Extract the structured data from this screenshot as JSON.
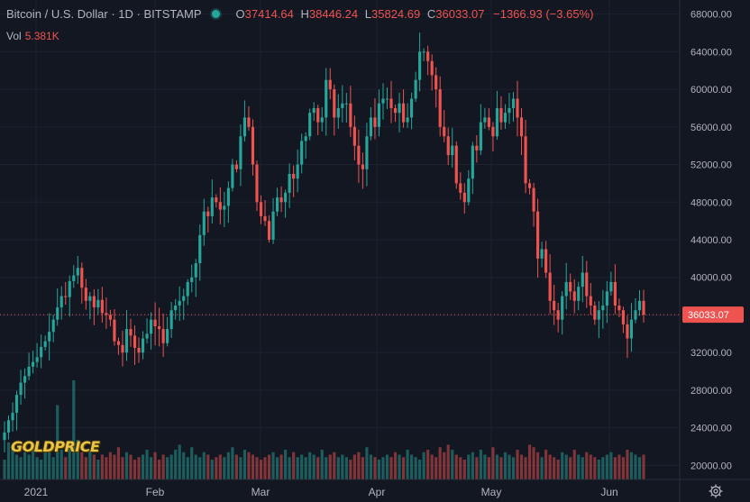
{
  "header": {
    "symbol": "Bitcoin / U.S. Dollar",
    "interval": "1D",
    "exchange": "BITSTAMP",
    "open_label": "O",
    "open": "37414.64",
    "high_label": "H",
    "high": "38446.24",
    "low_label": "L",
    "low": "35824.69",
    "close_label": "C",
    "close": "36033.07",
    "change": "−1366.93 (−3.65%)",
    "vol_label": "Vol",
    "vol": "5.381K"
  },
  "last_price": "36033.07",
  "watermark": "GOLDPRICE",
  "colors": {
    "up": "#26a69a",
    "down": "#ef5350",
    "bg": "#131722",
    "grid": "#1e2230"
  },
  "chart_data": {
    "type": "candlestick",
    "y_axis_ticks": [
      "68000.00",
      "64000.00",
      "60000.00",
      "56000.00",
      "52000.00",
      "48000.00",
      "44000.00",
      "40000.00",
      "36000.00",
      "32000.00",
      "28000.00",
      "24000.00",
      "20000.00"
    ],
    "ylim": [
      18500,
      69500
    ],
    "x_axis_ticks": [
      "2021",
      "Feb",
      "Mar",
      "Apr",
      "May",
      "Jun"
    ],
    "closes": [
      23500,
      24800,
      25600,
      27500,
      28800,
      29500,
      30500,
      31000,
      31500,
      32600,
      33200,
      34200,
      35500,
      36800,
      38000,
      37900,
      39600,
      40200,
      41000,
      38900,
      37500,
      38000,
      36800,
      37600,
      36200,
      36000,
      35500,
      33200,
      32800,
      32000,
      34500,
      33800,
      32500,
      32000,
      33500,
      34000,
      35500,
      34800,
      34500,
      33000,
      34500,
      36500,
      37000,
      37500,
      38000,
      39500,
      40000,
      41500,
      44500,
      47000,
      46500,
      48500,
      48000,
      47200,
      47600,
      49500,
      52000,
      51500,
      55000,
      57000,
      56000,
      52000,
      48000,
      46500,
      46000,
      44000,
      47000,
      48500,
      48000,
      49000,
      51000,
      50500,
      52000,
      54500,
      55000,
      57500,
      58000,
      56500,
      57000,
      61000,
      60000,
      57000,
      58000,
      58500,
      58500,
      56000,
      54000,
      52000,
      51500,
      55000,
      57000,
      56000,
      58500,
      59000,
      59000,
      58000,
      57500,
      58500,
      56500,
      57000,
      59000,
      61000,
      64000,
      64000,
      63000,
      61500,
      60000,
      56000,
      55000,
      53000,
      54000,
      50000,
      49000,
      48000,
      50500,
      54000,
      53500,
      56500,
      57000,
      56000,
      55000,
      58000,
      56500,
      57500,
      58000,
      59000,
      57000,
      55000,
      50000,
      49500,
      47000,
      42000,
      43000,
      40500,
      37500,
      36500,
      35500,
      38000,
      39500,
      38500,
      37500,
      39000,
      40500,
      38000,
      37000,
      35500,
      36500,
      37000,
      38500,
      39500,
      37000,
      36500,
      35000,
      33500,
      35500,
      36500,
      37500,
      36033
    ],
    "volumes": [
      8,
      15,
      12,
      10,
      9,
      11,
      10,
      14,
      9,
      8,
      13,
      11,
      9,
      30,
      12,
      9,
      14,
      40,
      16,
      11,
      9,
      12,
      10,
      8,
      10,
      9,
      11,
      10,
      13,
      9,
      11,
      10,
      8,
      9,
      10,
      12,
      9,
      11,
      8,
      10,
      9,
      10,
      12,
      14,
      11,
      9,
      13,
      10,
      9,
      11,
      10,
      8,
      9,
      10,
      9,
      11,
      13,
      10,
      9,
      12,
      11,
      10,
      9,
      8,
      9,
      10,
      11,
      9,
      10,
      12,
      9,
      11,
      9,
      10,
      9,
      11,
      10,
      9,
      12,
      9,
      10,
      11,
      9,
      10,
      9,
      8,
      10,
      11,
      9,
      13,
      10,
      9,
      8,
      9,
      10,
      9,
      11,
      10,
      9,
      12,
      10,
      9,
      8,
      11,
      12,
      10,
      9,
      13,
      11,
      14,
      12,
      10,
      9,
      8,
      10,
      11,
      9,
      12,
      10,
      9,
      13,
      10,
      9,
      11,
      10,
      9,
      12,
      10,
      9,
      14,
      13,
      11,
      9,
      12,
      10,
      9,
      8,
      11,
      10,
      9,
      12,
      10,
      9,
      11,
      10,
      9,
      8,
      9,
      10,
      11,
      9,
      10,
      9,
      12,
      11,
      10,
      9,
      10
    ]
  }
}
